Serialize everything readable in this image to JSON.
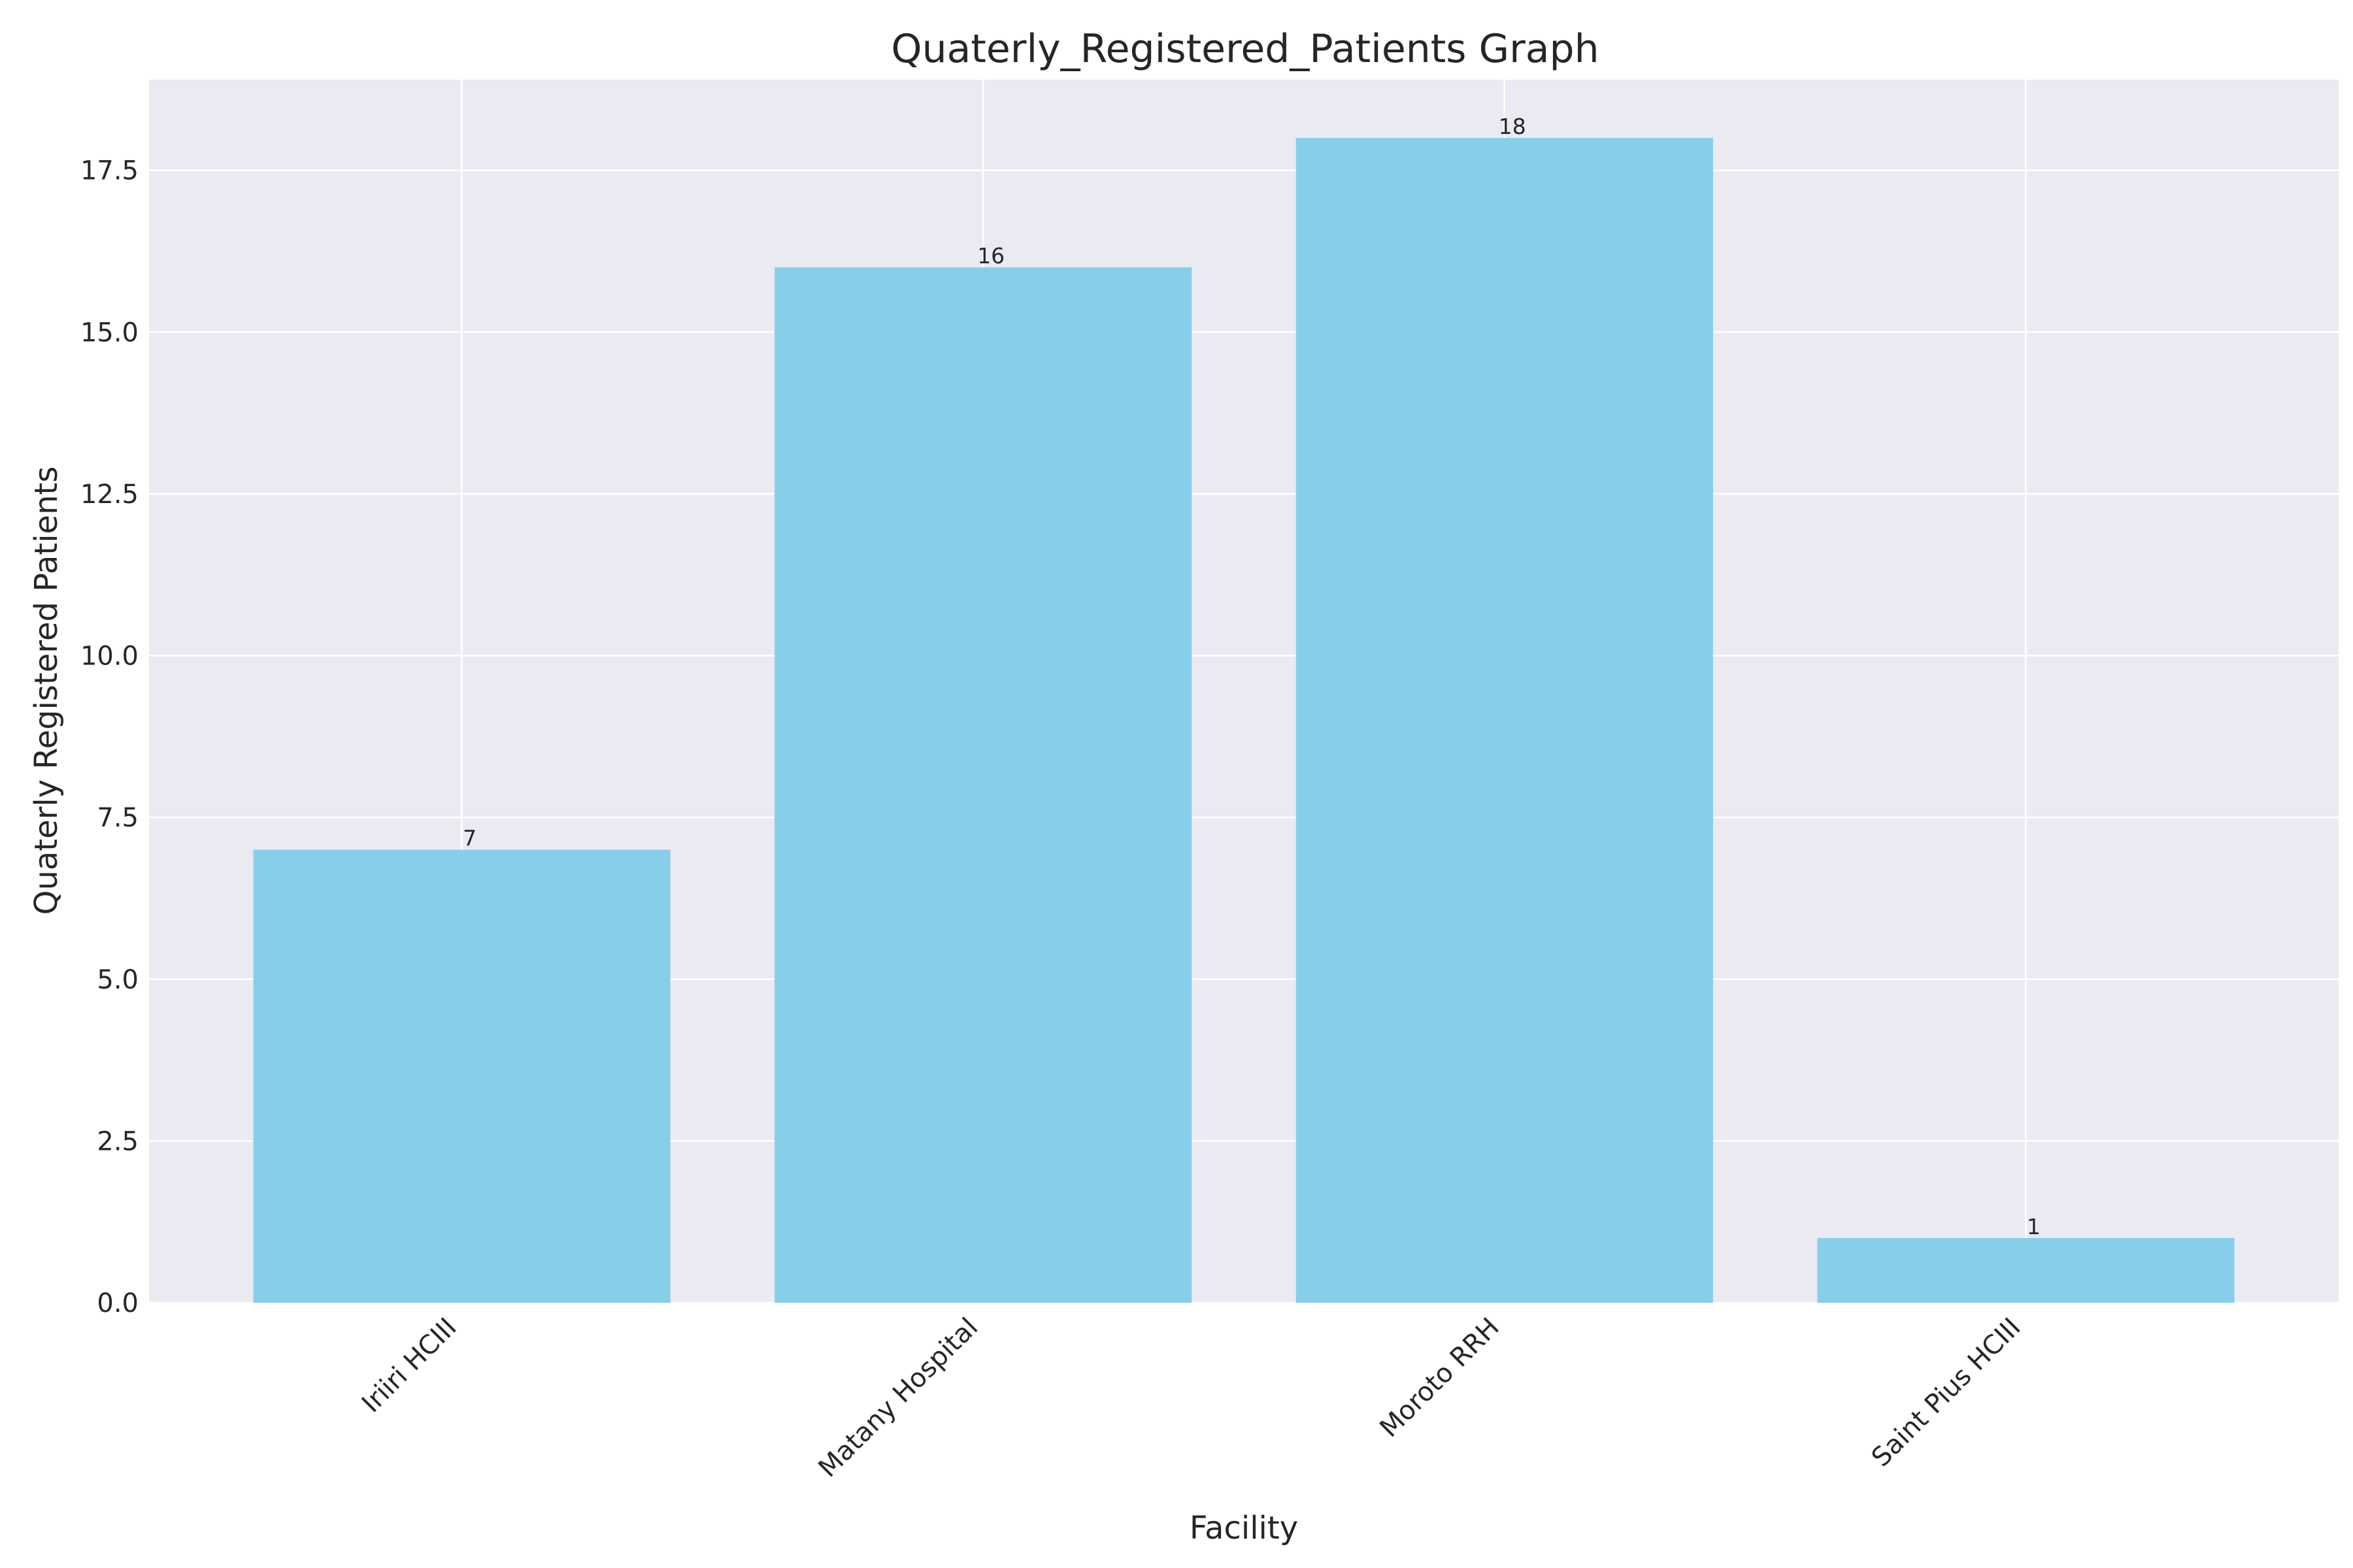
{
  "chart_data": {
    "type": "bar",
    "title": "Quaterly_Registered_Patients Graph",
    "xlabel": "Facility",
    "ylabel": "Quaterly Registered Patients",
    "categories": [
      "Iriiri HCIII",
      "Matany Hospital",
      "Moroto RRH",
      "Saint Pius HCIII"
    ],
    "values": [
      7,
      16,
      18,
      1
    ],
    "data_labels": [
      "7",
      "16",
      "18",
      "1"
    ],
    "ylim": [
      0,
      18.9
    ],
    "yticks": [
      0,
      2.5,
      5,
      7.5,
      10,
      12.5,
      15,
      17.5
    ],
    "ytick_labels": [
      "0.0",
      "2.5",
      "5.0",
      "7.5",
      "10.0",
      "12.5",
      "15.0",
      "17.5"
    ],
    "grid": true,
    "legend": "none",
    "colors": {
      "bar": "#87CEEB",
      "plot_background": "#EAEAF2",
      "grid": "#FFFFFF",
      "text": "#262626"
    }
  }
}
